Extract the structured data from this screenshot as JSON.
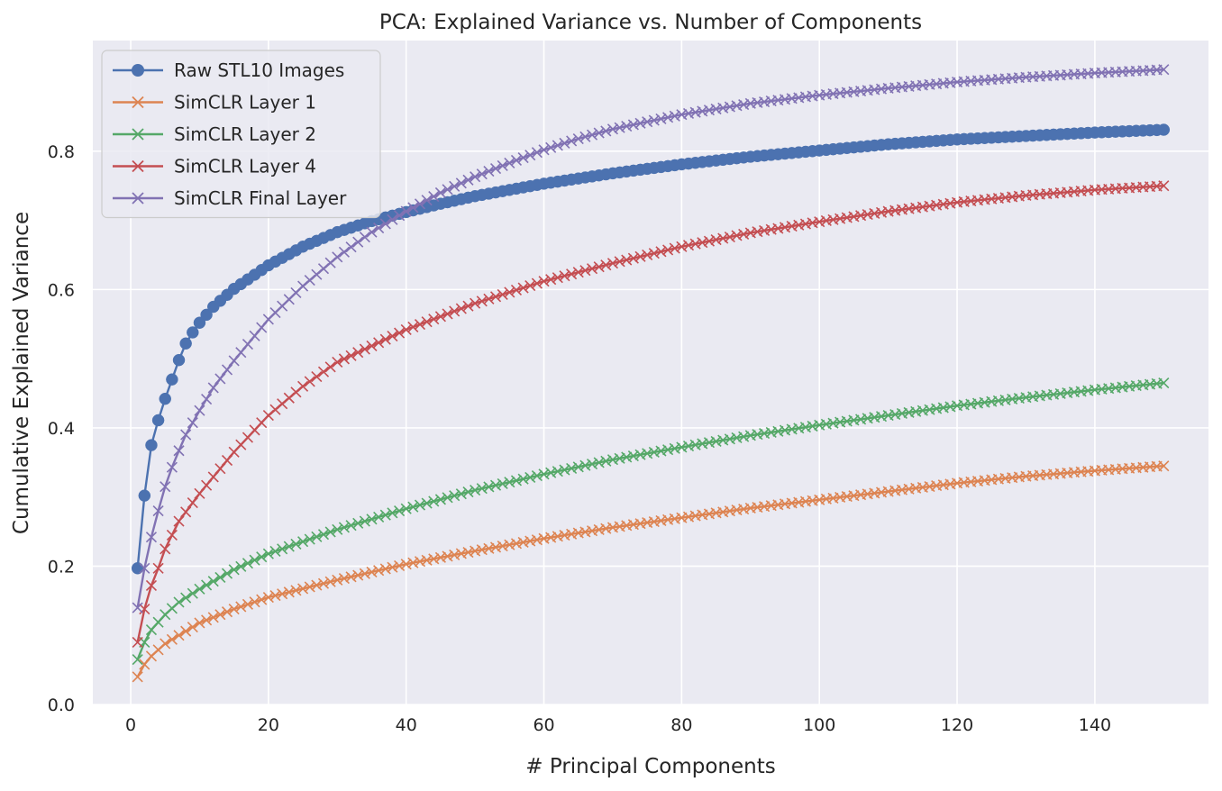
{
  "chart_data": {
    "type": "line",
    "title": "PCA: Explained Variance vs. Number of Components",
    "xlabel": "# Principal Components",
    "ylabel": "Cumulative Explained Variance",
    "xlim": [
      -5.5,
      156.5
    ],
    "ylim": [
      0.0,
      0.96
    ],
    "xticks": [
      0,
      20,
      40,
      60,
      80,
      100,
      120,
      140
    ],
    "yticks": [
      0.0,
      0.2,
      0.4,
      0.6,
      0.8
    ],
    "ytick_labels": [
      "0.0",
      "0.2",
      "0.4",
      "0.6",
      "0.8"
    ],
    "grid": true,
    "legend_position": "top-left",
    "background": "#eaeaf2",
    "x_range": [
      1,
      150
    ],
    "series": [
      {
        "name": "Raw STL10 Images",
        "color": "#4c72b0",
        "marker": "circle",
        "knots": [
          [
            1,
            0.197
          ],
          [
            2,
            0.302
          ],
          [
            3,
            0.375
          ],
          [
            4,
            0.411
          ],
          [
            5,
            0.442
          ],
          [
            6,
            0.47
          ],
          [
            7,
            0.498
          ],
          [
            8,
            0.522
          ],
          [
            9,
            0.538
          ],
          [
            10,
            0.552
          ],
          [
            12,
            0.575
          ],
          [
            15,
            0.601
          ],
          [
            20,
            0.635
          ],
          [
            25,
            0.662
          ],
          [
            30,
            0.683
          ],
          [
            35,
            0.699
          ],
          [
            40,
            0.712
          ],
          [
            45,
            0.724
          ],
          [
            50,
            0.735
          ],
          [
            60,
            0.753
          ],
          [
            70,
            0.768
          ],
          [
            80,
            0.781
          ],
          [
            90,
            0.792
          ],
          [
            100,
            0.801
          ],
          [
            110,
            0.81
          ],
          [
            120,
            0.817
          ],
          [
            130,
            0.822
          ],
          [
            140,
            0.827
          ],
          [
            150,
            0.831
          ]
        ]
      },
      {
        "name": "SimCLR Layer 1",
        "color": "#dd8452",
        "marker": "x",
        "knots": [
          [
            1,
            0.04
          ],
          [
            2,
            0.058
          ],
          [
            3,
            0.07
          ],
          [
            5,
            0.088
          ],
          [
            7,
            0.1
          ],
          [
            10,
            0.118
          ],
          [
            15,
            0.138
          ],
          [
            20,
            0.155
          ],
          [
            30,
            0.18
          ],
          [
            40,
            0.203
          ],
          [
            50,
            0.222
          ],
          [
            60,
            0.24
          ],
          [
            70,
            0.256
          ],
          [
            80,
            0.27
          ],
          [
            90,
            0.284
          ],
          [
            100,
            0.296
          ],
          [
            110,
            0.308
          ],
          [
            120,
            0.32
          ],
          [
            130,
            0.33
          ],
          [
            140,
            0.338
          ],
          [
            150,
            0.345
          ]
        ]
      },
      {
        "name": "SimCLR Layer 2",
        "color": "#55a868",
        "marker": "x",
        "knots": [
          [
            1,
            0.065
          ],
          [
            2,
            0.09
          ],
          [
            3,
            0.108
          ],
          [
            5,
            0.13
          ],
          [
            7,
            0.148
          ],
          [
            10,
            0.167
          ],
          [
            15,
            0.195
          ],
          [
            20,
            0.218
          ],
          [
            30,
            0.253
          ],
          [
            40,
            0.283
          ],
          [
            50,
            0.31
          ],
          [
            60,
            0.333
          ],
          [
            70,
            0.354
          ],
          [
            80,
            0.372
          ],
          [
            90,
            0.389
          ],
          [
            100,
            0.404
          ],
          [
            110,
            0.418
          ],
          [
            120,
            0.432
          ],
          [
            130,
            0.444
          ],
          [
            140,
            0.455
          ],
          [
            150,
            0.465
          ]
        ]
      },
      {
        "name": "SimCLR Layer 4",
        "color": "#c44e52",
        "marker": "x",
        "knots": [
          [
            1,
            0.09
          ],
          [
            2,
            0.138
          ],
          [
            3,
            0.172
          ],
          [
            4,
            0.197
          ],
          [
            5,
            0.225
          ],
          [
            7,
            0.265
          ],
          [
            10,
            0.305
          ],
          [
            15,
            0.365
          ],
          [
            20,
            0.418
          ],
          [
            25,
            0.46
          ],
          [
            30,
            0.495
          ],
          [
            40,
            0.542
          ],
          [
            50,
            0.58
          ],
          [
            60,
            0.612
          ],
          [
            70,
            0.638
          ],
          [
            80,
            0.662
          ],
          [
            90,
            0.682
          ],
          [
            100,
            0.698
          ],
          [
            110,
            0.713
          ],
          [
            120,
            0.726
          ],
          [
            130,
            0.736
          ],
          [
            140,
            0.744
          ],
          [
            150,
            0.75
          ]
        ]
      },
      {
        "name": "SimCLR Final Layer",
        "color": "#8172b3",
        "marker": "x",
        "knots": [
          [
            1,
            0.14
          ],
          [
            2,
            0.197
          ],
          [
            3,
            0.242
          ],
          [
            4,
            0.28
          ],
          [
            5,
            0.315
          ],
          [
            6,
            0.343
          ],
          [
            7,
            0.367
          ],
          [
            8,
            0.39
          ],
          [
            10,
            0.425
          ],
          [
            12,
            0.458
          ],
          [
            15,
            0.497
          ],
          [
            20,
            0.557
          ],
          [
            25,
            0.605
          ],
          [
            30,
            0.647
          ],
          [
            35,
            0.683
          ],
          [
            40,
            0.713
          ],
          [
            45,
            0.74
          ],
          [
            50,
            0.763
          ],
          [
            55,
            0.783
          ],
          [
            60,
            0.802
          ],
          [
            65,
            0.818
          ],
          [
            70,
            0.832
          ],
          [
            80,
            0.853
          ],
          [
            90,
            0.869
          ],
          [
            100,
            0.881
          ],
          [
            110,
            0.891
          ],
          [
            120,
            0.9
          ],
          [
            130,
            0.907
          ],
          [
            140,
            0.913
          ],
          [
            150,
            0.918
          ]
        ]
      }
    ]
  }
}
